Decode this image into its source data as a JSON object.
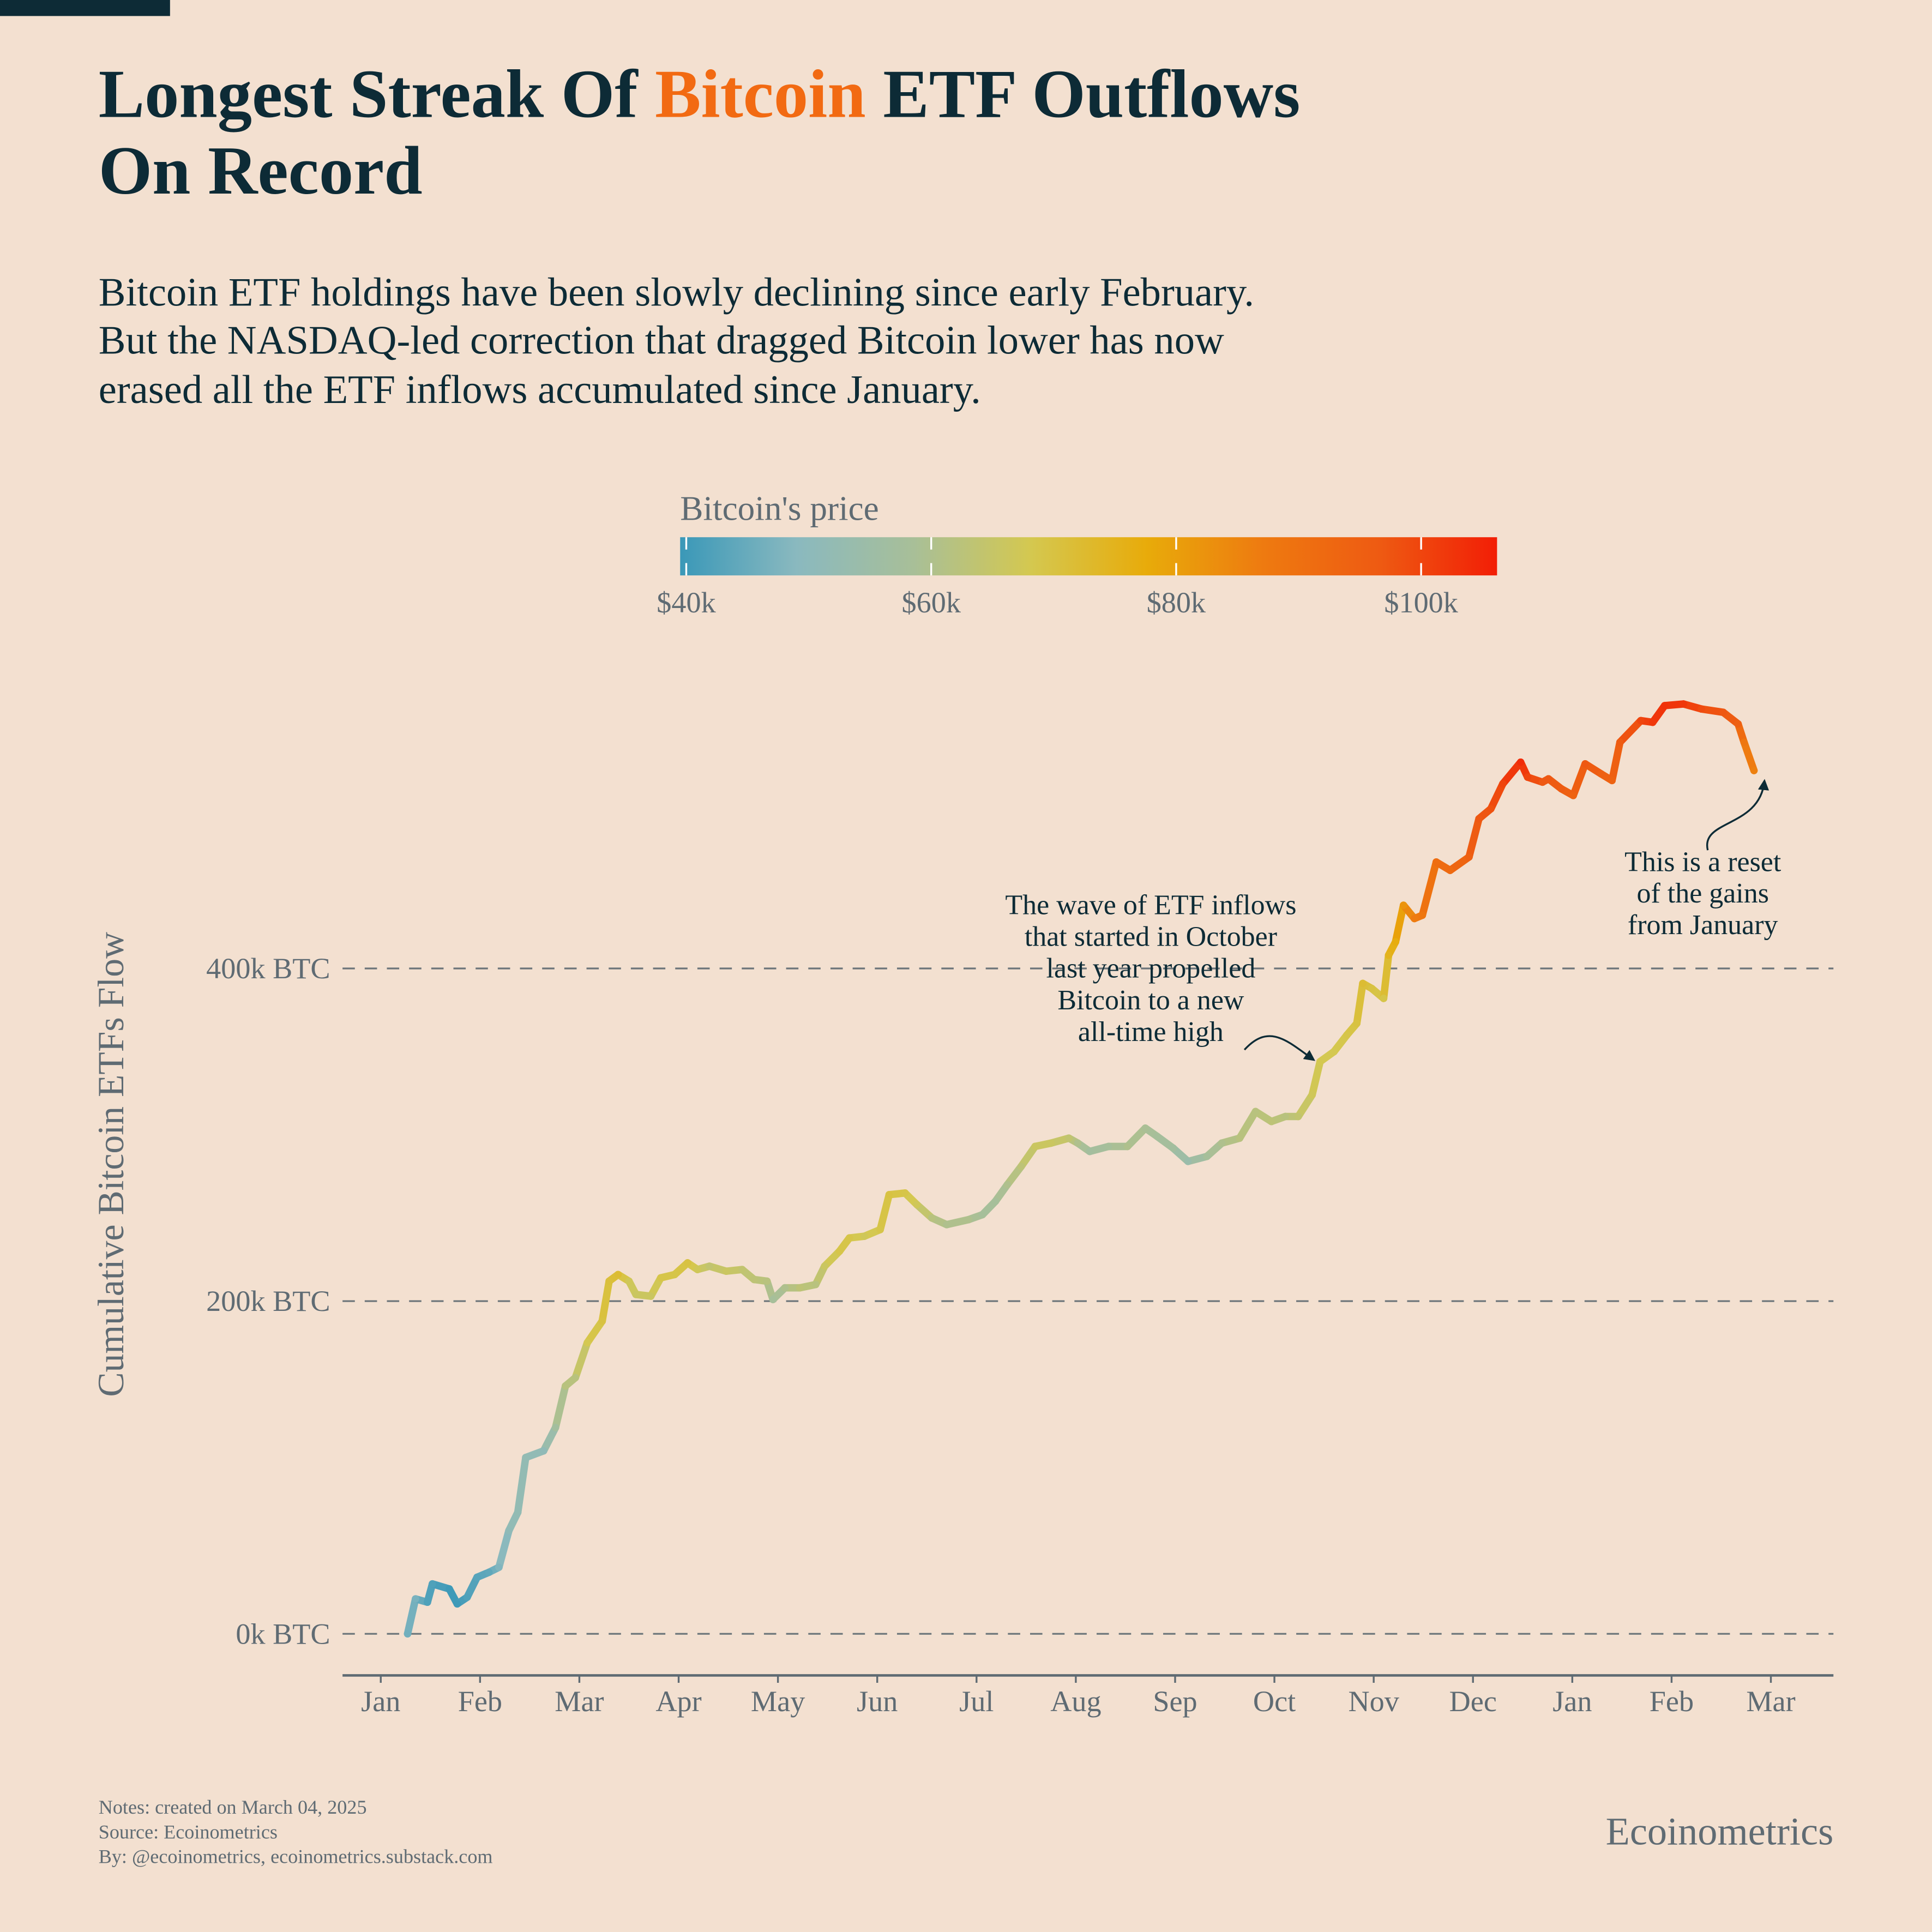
{
  "chart_data": {
    "type": "line",
    "title": [
      "Longest Streak Of",
      "Bitcoin",
      "ETF Outflows",
      "On Record"
    ],
    "subtitle": [
      "Bitcoin ETF holdings have been slowly declining since early February.",
      "But the NASDAQ-led correction that dragged Bitcoin lower has now",
      "erased all the ETF inflows accumulated since January."
    ],
    "colorbar_title": "Bitcoin's price",
    "clim": [
      39500,
      106200
    ],
    "colors": [
      "#3a98b8",
      "#8ab9bf",
      "#a8bf98",
      "#d4c850",
      "#e8ab0a",
      "#ee7a10",
      "#ee5a12",
      "#f21e06"
    ],
    "cticks": [
      {
        "value": 40000,
        "label": "$40k"
      },
      {
        "value": 60000,
        "label": "$60k"
      },
      {
        "value": 80000,
        "label": "$80k"
      },
      {
        "value": 100000,
        "label": "$100k"
      }
    ],
    "ylabel": "Cumulative Bitcoin ETFs Flow",
    "ylim": [
      -25000,
      590000
    ],
    "yticks": [
      {
        "value": 0,
        "label": "0k BTC"
      },
      {
        "value": 200000,
        "label": "200k BTC"
      },
      {
        "value": 400000,
        "label": "400k BTC"
      }
    ],
    "grid": true,
    "xlim": [
      -0.385,
      14.63
    ],
    "xticks": [
      {
        "value": 0,
        "label": "Jan"
      },
      {
        "value": 1,
        "label": "Feb"
      },
      {
        "value": 2,
        "label": "Mar"
      },
      {
        "value": 3,
        "label": "Apr"
      },
      {
        "value": 4,
        "label": "May"
      },
      {
        "value": 5,
        "label": "Jun"
      },
      {
        "value": 6,
        "label": "Jul"
      },
      {
        "value": 7,
        "label": "Aug"
      },
      {
        "value": 8,
        "label": "Sep"
      },
      {
        "value": 9,
        "label": "Oct"
      },
      {
        "value": 10,
        "label": "Nov"
      },
      {
        "value": 11,
        "label": "Dec"
      },
      {
        "value": 12,
        "label": "Jan"
      },
      {
        "value": 13,
        "label": "Feb"
      },
      {
        "value": 14,
        "label": "Mar"
      }
    ],
    "x": [
      0.27,
      0.35,
      0.47,
      0.52,
      0.69,
      0.77,
      0.87,
      0.97,
      1.09,
      1.19,
      1.29,
      1.38,
      1.46,
      1.64,
      1.76,
      1.86,
      1.96,
      2.08,
      2.23,
      2.3,
      2.39,
      2.5,
      2.57,
      2.72,
      2.82,
      2.96,
      3.09,
      3.19,
      3.31,
      3.48,
      3.64,
      3.76,
      3.89,
      3.95,
      4.07,
      4.22,
      4.38,
      4.47,
      4.62,
      4.72,
      4.87,
      5.03,
      5.12,
      5.28,
      5.4,
      5.55,
      5.7,
      5.92,
      6.06,
      6.19,
      6.31,
      6.45,
      6.59,
      6.75,
      6.93,
      7.02,
      7.14,
      7.33,
      7.52,
      7.7,
      7.82,
      7.98,
      8.13,
      8.32,
      8.47,
      8.65,
      8.81,
      8.97,
      9.11,
      9.24,
      9.38,
      9.46,
      9.6,
      9.73,
      9.83,
      9.89,
      9.98,
      10.1,
      10.15,
      10.22,
      10.3,
      10.41,
      10.49,
      10.63,
      10.77,
      10.96,
      11.06,
      11.18,
      11.3,
      11.48,
      11.55,
      11.7,
      11.76,
      11.89,
      12.01,
      12.13,
      12.29,
      12.4,
      12.48,
      12.69,
      12.81,
      12.93,
      13.12,
      13.3,
      13.52,
      13.67,
      13.73,
      13.83
    ],
    "values": [
      0,
      21000,
      19000,
      30000,
      27000,
      18000,
      22000,
      34000,
      37000,
      40000,
      62000,
      73000,
      106000,
      110000,
      124000,
      149000,
      154000,
      175000,
      188000,
      212000,
      216000,
      212000,
      204000,
      203000,
      214000,
      216000,
      223000,
      219000,
      221000,
      218000,
      219000,
      213000,
      212000,
      201000,
      208000,
      208000,
      210000,
      221000,
      230000,
      238000,
      239000,
      243000,
      264000,
      265000,
      258000,
      250000,
      246000,
      249000,
      252000,
      260000,
      270000,
      281000,
      293000,
      295000,
      298000,
      295000,
      290000,
      293000,
      293000,
      304000,
      299000,
      292000,
      284000,
      287000,
      295000,
      298000,
      314000,
      308000,
      311000,
      311000,
      324000,
      344000,
      350000,
      360000,
      367000,
      391000,
      388000,
      382000,
      408000,
      416000,
      438000,
      430000,
      432000,
      464000,
      459000,
      467000,
      490000,
      496000,
      511000,
      524000,
      515000,
      512000,
      514000,
      508000,
      504000,
      523000,
      517000,
      513000,
      536000,
      549000,
      548000,
      558000,
      559000,
      556000,
      554000,
      547000,
      536000,
      519000
    ],
    "price": [
      46000,
      47000,
      42000,
      42000,
      40000,
      40000,
      42000,
      43000,
      44000,
      48000,
      51000,
      52000,
      52000,
      51000,
      57000,
      62000,
      62000,
      68000,
      70000,
      71000,
      72000,
      67000,
      66000,
      66000,
      69000,
      69000,
      70000,
      67000,
      64000,
      66000,
      64000,
      63000,
      62000,
      58000,
      60000,
      63000,
      62000,
      66000,
      69000,
      69000,
      67000,
      69000,
      70000,
      69000,
      67000,
      62000,
      60000,
      60000,
      58000,
      58000,
      60000,
      63000,
      66000,
      66000,
      64000,
      60000,
      57000,
      58000,
      60000,
      59000,
      58000,
      57000,
      54000,
      58000,
      60000,
      62000,
      62000,
      63000,
      62000,
      64000,
      67000,
      68000,
      68000,
      69000,
      70000,
      72000,
      70000,
      69000,
      75000,
      77000,
      82000,
      87000,
      88000,
      91000,
      92000,
      95000,
      97000,
      98000,
      100000,
      104000,
      100000,
      97000,
      97000,
      96000,
      94000,
      97000,
      95000,
      94000,
      96000,
      100000,
      102000,
      103000,
      102000,
      99000,
      97000,
      95000,
      88000,
      86000
    ],
    "annotations": [
      [
        "The wave of ETF inflows",
        "that started in October",
        "last year propelled",
        "Bitcoin to a new",
        "all-time high"
      ],
      [
        "This is a reset",
        "of the gains",
        "from January"
      ]
    ],
    "notes": [
      "Notes: created on March 04, 2025",
      "Source: Ecoinometrics",
      "By: @ecoinometrics, ecoinometrics.substack.com"
    ],
    "brand": "Ecoinometrics"
  }
}
